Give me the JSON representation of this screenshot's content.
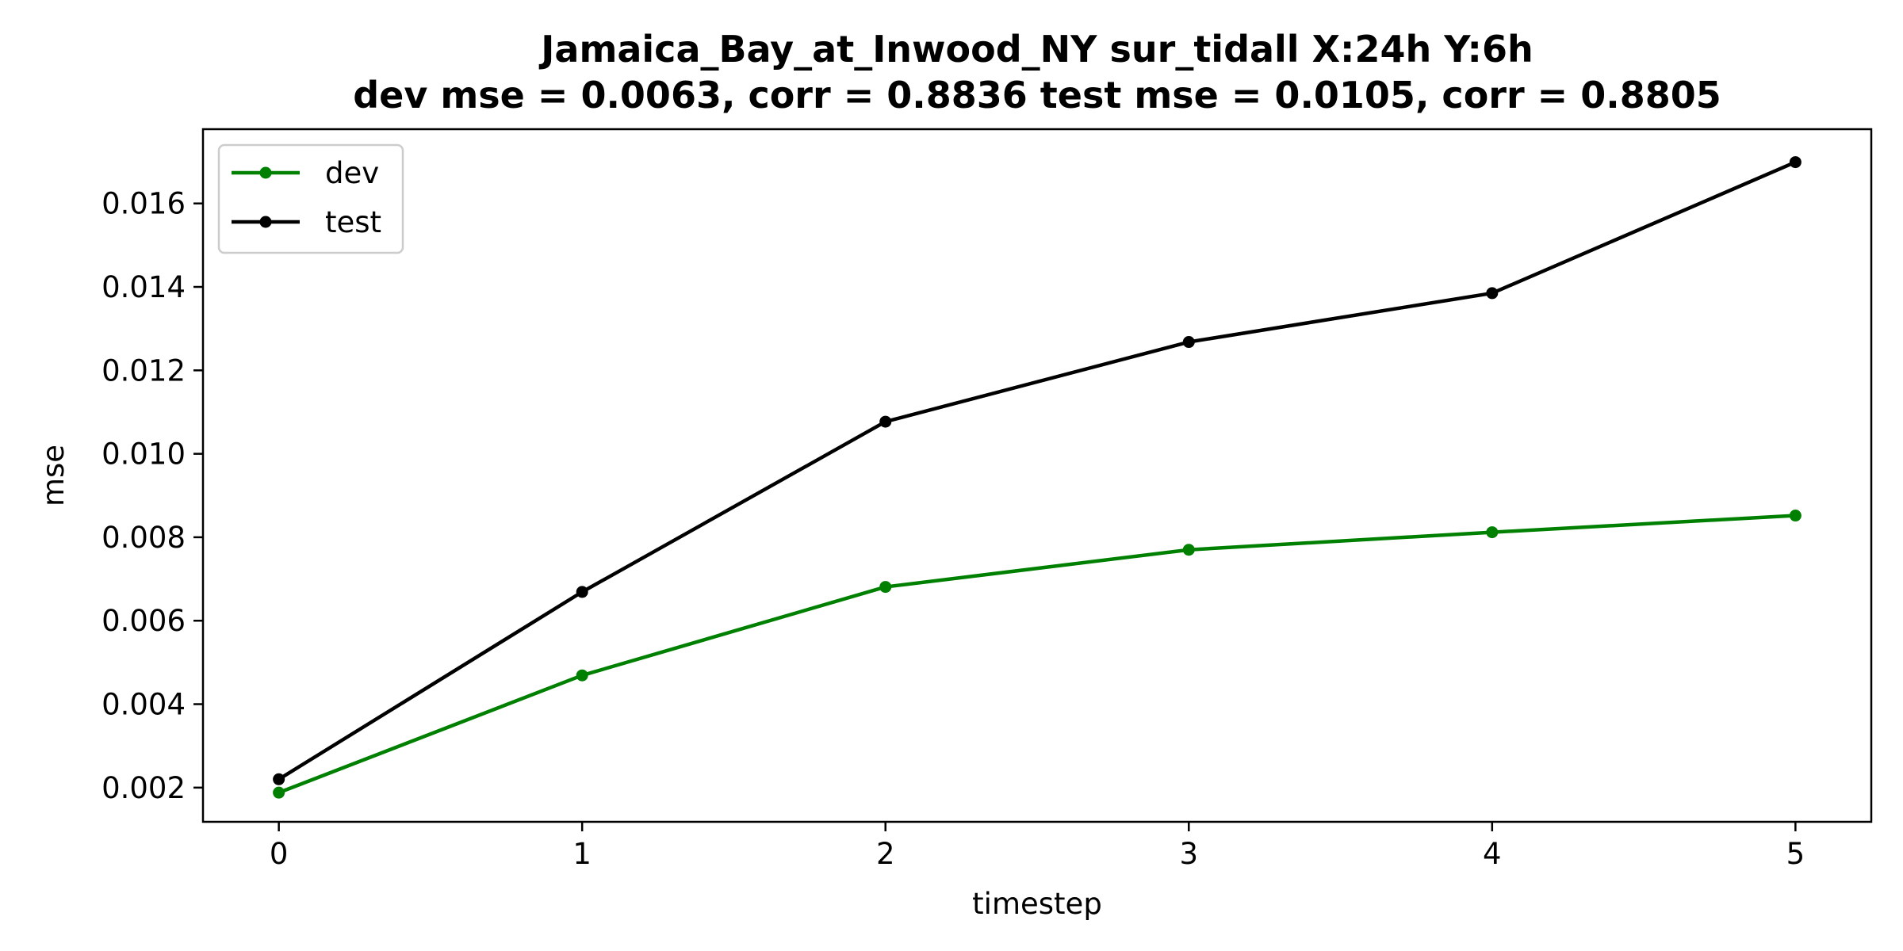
{
  "chart_data": {
    "type": "line",
    "title_line1": "Jamaica_Bay_at_Inwood_NY   sur_tidall   X:24h   Y:6h",
    "title_line2": "dev mse = 0.0063, corr = 0.8836   test mse = 0.0105, corr = 0.8805",
    "xlabel": "timestep",
    "ylabel": "mse",
    "x": [
      0,
      1,
      2,
      3,
      4,
      5
    ],
    "xlim": [
      -0.25,
      5.25
    ],
    "ylim": [
      0.00118,
      0.01778
    ],
    "xticks": [
      "0",
      "1",
      "2",
      "3",
      "4",
      "5"
    ],
    "yticks": [
      "0.002",
      "0.004",
      "0.006",
      "0.008",
      "0.010",
      "0.012",
      "0.014",
      "0.016"
    ],
    "grid": false,
    "legend_position": "top-left",
    "series": [
      {
        "name": "dev",
        "color": "#008000",
        "marker": "circle",
        "values": [
          0.00188,
          0.00469,
          0.00681,
          0.0077,
          0.00812,
          0.00852
        ]
      },
      {
        "name": "test",
        "color": "#000000",
        "marker": "circle",
        "values": [
          0.0022,
          0.00669,
          0.01077,
          0.01268,
          0.01385,
          0.01699
        ]
      }
    ]
  }
}
